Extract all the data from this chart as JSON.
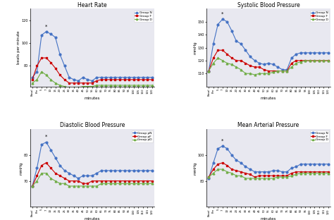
{
  "x_labels": [
    "Basal",
    "Pre",
    "5",
    "7",
    "10",
    "15",
    "20",
    "25",
    "30",
    "35",
    "40",
    "45",
    "50",
    "55",
    "60",
    "65",
    "70",
    "75",
    "80",
    "85",
    "90",
    "95",
    "100",
    "105",
    "110",
    "115",
    "120"
  ],
  "heart_rate": {
    "title": "Heart Rate",
    "ylabel": "beats per minute",
    "ylim": [
      62,
      130
    ],
    "yticks": [
      80,
      100,
      120
    ],
    "group_N": [
      70,
      75,
      107,
      110,
      108,
      105,
      90,
      80,
      70,
      68,
      67,
      70,
      68,
      67,
      70,
      70,
      70,
      70,
      70,
      70,
      70,
      70,
      70,
      70,
      70,
      70,
      70
    ],
    "group_F": [
      68,
      80,
      87,
      87,
      83,
      78,
      72,
      68,
      65,
      65,
      65,
      65,
      65,
      65,
      67,
      68,
      68,
      68,
      68,
      68,
      68,
      68,
      68,
      68,
      68,
      68,
      68
    ],
    "group_D": [
      65,
      68,
      75,
      72,
      68,
      65,
      63,
      62,
      61,
      61,
      61,
      62,
      62,
      62,
      63,
      63,
      63,
      63,
      63,
      63,
      63,
      63,
      63,
      63,
      63,
      63,
      63
    ],
    "peak_label_idx": 3,
    "peak_label_group": "N"
  },
  "systolic": {
    "title": "Systolic Blood Pressure",
    "ylabel": "mmHg",
    "ylim": [
      100,
      160
    ],
    "yticks": [
      110,
      120,
      130,
      140,
      150
    ],
    "group_N": [
      112,
      133,
      148,
      152,
      150,
      143,
      135,
      133,
      128,
      123,
      120,
      118,
      117,
      118,
      117,
      115,
      113,
      113,
      122,
      125,
      126,
      126,
      126,
      126,
      126,
      126,
      126
    ],
    "group_F": [
      112,
      122,
      128,
      128,
      125,
      122,
      120,
      120,
      118,
      116,
      115,
      115,
      113,
      112,
      112,
      112,
      112,
      112,
      118,
      120,
      120,
      120,
      120,
      120,
      120,
      120,
      120
    ],
    "group_D": [
      112,
      118,
      122,
      120,
      118,
      117,
      115,
      113,
      110,
      110,
      109,
      110,
      110,
      110,
      111,
      112,
      112,
      112,
      115,
      118,
      119,
      120,
      120,
      120,
      120,
      120,
      120
    ],
    "peak_label_idx": 3,
    "peak_label_group": "N"
  },
  "diastolic": {
    "title": "Diastolic Blood Pressure",
    "ylabel": "mmHg",
    "ylim": [
      60,
      90
    ],
    "yticks": [
      70,
      80
    ],
    "group_N": [
      68,
      75,
      84,
      85,
      82,
      79,
      76,
      74,
      73,
      72,
      71,
      72,
      72,
      72,
      73,
      74,
      74,
      74,
      74,
      74,
      74,
      74,
      74,
      74,
      74,
      74,
      74
    ],
    "group_F": [
      68,
      72,
      76,
      77,
      75,
      73,
      72,
      71,
      70,
      70,
      70,
      69,
      69,
      70,
      70,
      70,
      70,
      70,
      70,
      70,
      70,
      70,
      70,
      70,
      70,
      70,
      70
    ],
    "group_D": [
      68,
      70,
      73,
      73,
      71,
      70,
      69,
      69,
      68,
      68,
      68,
      68,
      68,
      68,
      68,
      69,
      69,
      69,
      69,
      69,
      69,
      69,
      69,
      69,
      69,
      69,
      69
    ],
    "peak_label_idx": 3,
    "peak_label_group": "N"
  },
  "map": {
    "title": "Mean Arterial Pressure",
    "ylabel": "mmHg",
    "ylim": [
      60,
      120
    ],
    "yticks": [
      80,
      100
    ],
    "group_N": [
      82,
      94,
      105,
      107,
      105,
      100,
      96,
      94,
      91,
      89,
      87,
      87,
      87,
      87,
      88,
      88,
      87,
      87,
      90,
      91,
      93,
      93,
      93,
      93,
      93,
      93,
      93
    ],
    "group_F": [
      83,
      89,
      93,
      94,
      92,
      89,
      88,
      87,
      86,
      85,
      83,
      84,
      84,
      84,
      84,
      84,
      84,
      84,
      86,
      87,
      87,
      87,
      87,
      87,
      87,
      87,
      87
    ],
    "group_D": [
      83,
      86,
      89,
      89,
      87,
      86,
      84,
      84,
      82,
      82,
      82,
      82,
      82,
      82,
      82,
      83,
      83,
      83,
      84,
      85,
      86,
      86,
      86,
      86,
      86,
      86,
      86
    ],
    "peak_label_idx": 3,
    "peak_label_group": "N"
  },
  "colors": {
    "N": "#4472c4",
    "F": "#cc0000",
    "D": "#70ad47"
  },
  "legend_labels": {
    "N": "Group N",
    "F": "Group F",
    "D": "Group D"
  },
  "legend_labels_bottom": {
    "N": "Group pN",
    "F": "Group pF",
    "D": "Group pD"
  },
  "marker_N": "o",
  "marker_F": "s",
  "marker_D": "^",
  "background": "#ffffff",
  "fig_background": "#ffffff",
  "panel_bg": "#e8e8f0"
}
